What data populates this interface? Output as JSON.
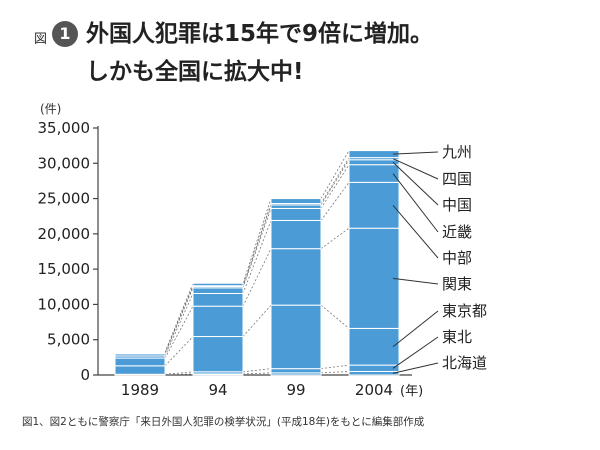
{
  "header": {
    "fig_label": "図",
    "fig_number": "1",
    "title_line1": "外国人犯罪は15年で9倍に増加。",
    "title_line2": "しかも全国に拡大中!"
  },
  "source_note": "図1、図2ともに警察庁「来日外国人犯罪の検挙状況」(平成18年)をもとに編集部作成",
  "chart_data": {
    "type": "bar",
    "stacked": true,
    "unit_label": "(件)",
    "x_unit_label": "(年)",
    "categories": [
      "1989",
      "94",
      "99",
      "2004"
    ],
    "ylim": [
      0,
      35000
    ],
    "yticks": [
      0,
      5000,
      10000,
      15000,
      20000,
      25000,
      30000,
      35000
    ],
    "ytick_labels": [
      "0",
      "5,000",
      "10,000",
      "15,000",
      "20,000",
      "25,000",
      "30,000",
      "35,000"
    ],
    "series": [
      {
        "name": "北海道",
        "values": [
          30,
          150,
          300,
          500
        ]
      },
      {
        "name": "東北",
        "values": [
          70,
          300,
          600,
          900
        ]
      },
      {
        "name": "東京都",
        "values": [
          1200,
          5000,
          9000,
          5200
        ]
      },
      {
        "name": "関東",
        "values": [
          1100,
          4300,
          8000,
          14200
        ]
      },
      {
        "name": "中部",
        "values": [
          300,
          1800,
          4000,
          6500
        ]
      },
      {
        "name": "近畿",
        "values": [
          300,
          800,
          1700,
          2500
        ]
      },
      {
        "name": "中国",
        "values": [
          100,
          200,
          500,
          700
        ]
      },
      {
        "name": "四国",
        "values": [
          30,
          100,
          200,
          300
        ]
      },
      {
        "name": "九州",
        "values": [
          100,
          350,
          700,
          1000
        ]
      }
    ],
    "legend_position": "right",
    "bar_color": "#4a9bd6",
    "grid": false
  }
}
